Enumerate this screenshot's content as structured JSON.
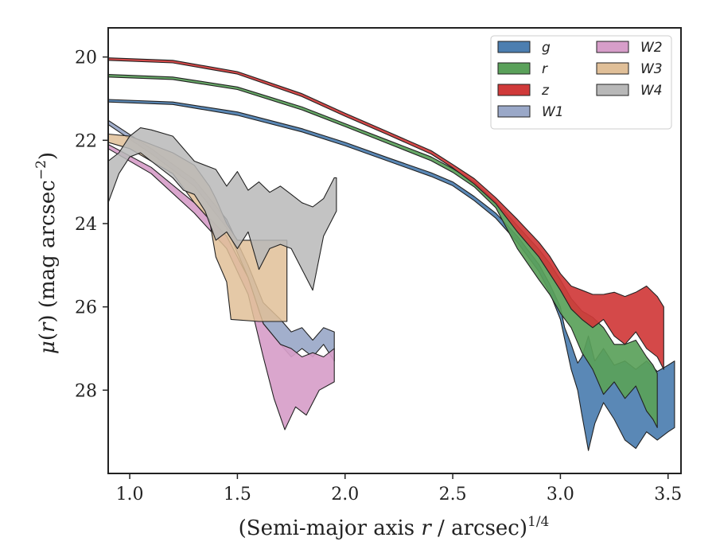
{
  "chart_data": {
    "type": "area",
    "title": "",
    "xlabel": "(Semi-major axis r / arcsec)",
    "xlabel_parts": {
      "prefix": "(Semi-major axis ",
      "var": "r",
      "suffix": " / arcsec)",
      "superscript": "1/4"
    },
    "ylabel": "μ(r) (mag arcsec⁻²)",
    "ylabel_parts": {
      "mu": "μ",
      "open": "(",
      "var": "r",
      "close": ") (mag arcsec",
      "sup": "−2",
      "end": ")"
    },
    "xlim": [
      0.9,
      3.56
    ],
    "ylim": [
      30.0,
      19.3
    ],
    "y_inverted": true,
    "xticks": [
      1.0,
      1.5,
      2.0,
      2.5,
      3.0,
      3.5
    ],
    "xtick_labels": [
      "1.0",
      "1.5",
      "2.0",
      "2.5",
      "3.0",
      "3.5"
    ],
    "yticks": [
      20,
      22,
      24,
      26,
      28
    ],
    "ytick_labels": [
      "20",
      "22",
      "24",
      "26",
      "28"
    ],
    "grid": false,
    "legend": {
      "placement": "top-right",
      "columns": 2
    },
    "series": [
      {
        "name": "g",
        "color": "#4c7eb0",
        "upper": [
          [
            0.9,
            21.02
          ],
          [
            1.2,
            21.08
          ],
          [
            1.5,
            21.32
          ],
          [
            1.8,
            21.72
          ],
          [
            2.0,
            22.05
          ],
          [
            2.2,
            22.42
          ],
          [
            2.4,
            22.78
          ],
          [
            2.5,
            23.0
          ],
          [
            2.6,
            23.35
          ],
          [
            2.7,
            23.75
          ],
          [
            2.8,
            24.3
          ],
          [
            2.9,
            24.98
          ],
          [
            2.95,
            25.45
          ],
          [
            3.0,
            26.0
          ],
          [
            3.02,
            26.5
          ],
          [
            3.05,
            26.9
          ],
          [
            3.08,
            27.35
          ],
          [
            3.1,
            27.2
          ],
          [
            3.13,
            26.7
          ],
          [
            3.16,
            27.3
          ],
          [
            3.2,
            27.0
          ],
          [
            3.25,
            27.4
          ],
          [
            3.3,
            27.3
          ],
          [
            3.35,
            27.5
          ],
          [
            3.4,
            27.3
          ],
          [
            3.45,
            27.55
          ],
          [
            3.5,
            27.4
          ],
          [
            3.53,
            27.3
          ]
        ],
        "lower": [
          [
            0.9,
            21.08
          ],
          [
            1.2,
            21.14
          ],
          [
            1.5,
            21.4
          ],
          [
            1.8,
            21.8
          ],
          [
            2.0,
            22.13
          ],
          [
            2.2,
            22.5
          ],
          [
            2.4,
            22.87
          ],
          [
            2.5,
            23.09
          ],
          [
            2.6,
            23.45
          ],
          [
            2.7,
            23.87
          ],
          [
            2.8,
            24.45
          ],
          [
            2.9,
            25.15
          ],
          [
            2.95,
            25.65
          ],
          [
            3.0,
            26.3
          ],
          [
            3.05,
            27.5
          ],
          [
            3.08,
            28.0
          ],
          [
            3.1,
            28.6
          ],
          [
            3.13,
            29.45
          ],
          [
            3.16,
            28.8
          ],
          [
            3.2,
            28.3
          ],
          [
            3.25,
            28.7
          ],
          [
            3.3,
            29.2
          ],
          [
            3.35,
            29.4
          ],
          [
            3.4,
            29.0
          ],
          [
            3.45,
            29.2
          ],
          [
            3.5,
            29.0
          ],
          [
            3.53,
            28.9
          ]
        ]
      },
      {
        "name": "r",
        "color": "#5aa15a",
        "upper": [
          [
            0.9,
            20.42
          ],
          [
            1.2,
            20.48
          ],
          [
            1.5,
            20.72
          ],
          [
            1.8,
            21.2
          ],
          [
            2.0,
            21.6
          ],
          [
            2.2,
            22.0
          ],
          [
            2.4,
            22.4
          ],
          [
            2.5,
            22.68
          ],
          [
            2.6,
            23.0
          ],
          [
            2.7,
            23.48
          ],
          [
            2.8,
            24.05
          ],
          [
            2.9,
            24.62
          ],
          [
            2.95,
            24.95
          ],
          [
            3.0,
            25.35
          ],
          [
            3.05,
            25.8
          ],
          [
            3.1,
            26.1
          ],
          [
            3.15,
            26.25
          ],
          [
            3.2,
            26.5
          ],
          [
            3.25,
            26.9
          ],
          [
            3.3,
            26.9
          ],
          [
            3.35,
            26.8
          ],
          [
            3.4,
            27.2
          ],
          [
            3.43,
            27.4
          ],
          [
            3.45,
            27.6
          ]
        ],
        "lower": [
          [
            0.9,
            20.48
          ],
          [
            1.2,
            20.54
          ],
          [
            1.5,
            20.78
          ],
          [
            1.8,
            21.27
          ],
          [
            2.0,
            21.67
          ],
          [
            2.2,
            22.08
          ],
          [
            2.4,
            22.49
          ],
          [
            2.5,
            22.77
          ],
          [
            2.6,
            23.12
          ],
          [
            2.7,
            23.62
          ],
          [
            2.8,
            24.6
          ],
          [
            2.9,
            25.35
          ],
          [
            2.95,
            25.7
          ],
          [
            3.0,
            26.15
          ],
          [
            3.05,
            26.5
          ],
          [
            3.1,
            27.1
          ],
          [
            3.15,
            27.5
          ],
          [
            3.2,
            28.1
          ],
          [
            3.25,
            27.8
          ],
          [
            3.3,
            28.2
          ],
          [
            3.35,
            27.9
          ],
          [
            3.4,
            28.5
          ],
          [
            3.43,
            28.7
          ],
          [
            3.45,
            28.9
          ]
        ]
      },
      {
        "name": "z",
        "color": "#d03a3a",
        "upper": [
          [
            0.9,
            20.02
          ],
          [
            1.2,
            20.08
          ],
          [
            1.5,
            20.35
          ],
          [
            1.8,
            20.88
          ],
          [
            2.0,
            21.35
          ],
          [
            2.2,
            21.8
          ],
          [
            2.4,
            22.25
          ],
          [
            2.5,
            22.58
          ],
          [
            2.6,
            22.92
          ],
          [
            2.7,
            23.38
          ],
          [
            2.8,
            23.9
          ],
          [
            2.9,
            24.45
          ],
          [
            2.95,
            24.78
          ],
          [
            3.0,
            25.2
          ],
          [
            3.05,
            25.5
          ],
          [
            3.1,
            25.6
          ],
          [
            3.15,
            25.7
          ],
          [
            3.2,
            25.7
          ],
          [
            3.25,
            25.65
          ],
          [
            3.3,
            25.75
          ],
          [
            3.35,
            25.65
          ],
          [
            3.4,
            25.5
          ],
          [
            3.45,
            25.75
          ],
          [
            3.48,
            26.0
          ]
        ],
        "lower": [
          [
            0.9,
            20.08
          ],
          [
            1.2,
            20.14
          ],
          [
            1.5,
            20.41
          ],
          [
            1.8,
            20.95
          ],
          [
            2.0,
            21.42
          ],
          [
            2.2,
            21.87
          ],
          [
            2.4,
            22.33
          ],
          [
            2.5,
            22.66
          ],
          [
            2.6,
            23.05
          ],
          [
            2.7,
            23.52
          ],
          [
            2.8,
            24.2
          ],
          [
            2.9,
            24.8
          ],
          [
            2.95,
            25.2
          ],
          [
            3.0,
            25.6
          ],
          [
            3.05,
            26.05
          ],
          [
            3.1,
            26.3
          ],
          [
            3.15,
            26.5
          ],
          [
            3.2,
            26.3
          ],
          [
            3.25,
            26.7
          ],
          [
            3.3,
            26.9
          ],
          [
            3.35,
            26.6
          ],
          [
            3.4,
            27.0
          ],
          [
            3.45,
            27.2
          ],
          [
            3.48,
            27.5
          ]
        ]
      },
      {
        "name": "W1",
        "color": "#9aa8c8",
        "upper": [
          [
            0.9,
            21.52
          ],
          [
            1.1,
            22.2
          ],
          [
            1.3,
            22.95
          ],
          [
            1.45,
            23.9
          ],
          [
            1.55,
            25.0
          ],
          [
            1.62,
            25.9
          ],
          [
            1.7,
            26.3
          ],
          [
            1.75,
            26.6
          ],
          [
            1.8,
            26.5
          ],
          [
            1.85,
            26.8
          ],
          [
            1.9,
            26.5
          ],
          [
            1.95,
            26.6
          ]
        ],
        "lower": [
          [
            0.9,
            21.62
          ],
          [
            1.1,
            22.32
          ],
          [
            1.3,
            23.1
          ],
          [
            1.45,
            24.1
          ],
          [
            1.55,
            25.3
          ],
          [
            1.62,
            26.4
          ],
          [
            1.7,
            26.9
          ],
          [
            1.75,
            27.2
          ],
          [
            1.8,
            27.0
          ],
          [
            1.85,
            27.2
          ],
          [
            1.9,
            26.9
          ],
          [
            1.95,
            27.3
          ]
        ]
      },
      {
        "name": "W2",
        "color": "#d79ec9",
        "upper": [
          [
            0.9,
            22.1
          ],
          [
            1.1,
            22.65
          ],
          [
            1.3,
            23.5
          ],
          [
            1.45,
            24.3
          ],
          [
            1.55,
            25.3
          ],
          [
            1.62,
            26.4
          ],
          [
            1.7,
            26.9
          ],
          [
            1.75,
            27.0
          ],
          [
            1.8,
            27.2
          ],
          [
            1.85,
            27.1
          ],
          [
            1.9,
            27.2
          ],
          [
            1.95,
            27.0
          ]
        ],
        "lower": [
          [
            0.9,
            22.2
          ],
          [
            1.1,
            22.8
          ],
          [
            1.3,
            23.75
          ],
          [
            1.45,
            24.6
          ],
          [
            1.55,
            25.7
          ],
          [
            1.62,
            27.2
          ],
          [
            1.67,
            28.2
          ],
          [
            1.72,
            28.95
          ],
          [
            1.77,
            28.4
          ],
          [
            1.82,
            28.6
          ],
          [
            1.88,
            28.0
          ],
          [
            1.95,
            27.8
          ]
        ]
      },
      {
        "name": "W3",
        "color": "#e0bf98",
        "upper": [
          [
            0.9,
            21.85
          ],
          [
            1.0,
            21.9
          ],
          [
            1.1,
            22.1
          ],
          [
            1.2,
            22.3
          ],
          [
            1.3,
            22.6
          ],
          [
            1.37,
            23.1
          ],
          [
            1.4,
            23.4
          ],
          [
            1.45,
            24.0
          ],
          [
            1.5,
            24.4
          ],
          [
            1.6,
            24.4
          ],
          [
            1.73,
            24.4
          ]
        ],
        "lower": [
          [
            0.9,
            22.05
          ],
          [
            1.0,
            22.2
          ],
          [
            1.1,
            22.5
          ],
          [
            1.2,
            22.8
          ],
          [
            1.3,
            23.5
          ],
          [
            1.37,
            23.9
          ],
          [
            1.4,
            24.8
          ],
          [
            1.45,
            25.4
          ],
          [
            1.47,
            26.3
          ],
          [
            1.6,
            26.35
          ],
          [
            1.73,
            26.35
          ]
        ]
      },
      {
        "name": "W4",
        "color": "#b8b8b8",
        "upper": [
          [
            0.9,
            22.5
          ],
          [
            0.95,
            22.3
          ],
          [
            1.0,
            21.9
          ],
          [
            1.05,
            21.7
          ],
          [
            1.1,
            21.75
          ],
          [
            1.2,
            21.9
          ],
          [
            1.3,
            22.5
          ],
          [
            1.4,
            22.7
          ],
          [
            1.45,
            23.1
          ],
          [
            1.5,
            22.75
          ],
          [
            1.55,
            23.2
          ],
          [
            1.6,
            23.0
          ],
          [
            1.65,
            23.25
          ],
          [
            1.7,
            23.1
          ],
          [
            1.75,
            23.3
          ],
          [
            1.8,
            23.5
          ],
          [
            1.85,
            23.6
          ],
          [
            1.9,
            23.4
          ],
          [
            1.95,
            22.9
          ],
          [
            1.96,
            22.9
          ]
        ],
        "lower": [
          [
            0.9,
            23.5
          ],
          [
            0.95,
            22.8
          ],
          [
            1.0,
            22.4
          ],
          [
            1.05,
            22.3
          ],
          [
            1.1,
            22.5
          ],
          [
            1.2,
            22.9
          ],
          [
            1.25,
            23.2
          ],
          [
            1.3,
            23.3
          ],
          [
            1.35,
            23.7
          ],
          [
            1.4,
            24.4
          ],
          [
            1.45,
            24.2
          ],
          [
            1.5,
            24.6
          ],
          [
            1.55,
            24.2
          ],
          [
            1.6,
            25.1
          ],
          [
            1.65,
            24.6
          ],
          [
            1.7,
            24.5
          ],
          [
            1.75,
            24.6
          ],
          [
            1.8,
            25.1
          ],
          [
            1.85,
            25.6
          ],
          [
            1.9,
            24.3
          ],
          [
            1.95,
            23.8
          ],
          [
            1.96,
            23.7
          ]
        ]
      }
    ]
  }
}
